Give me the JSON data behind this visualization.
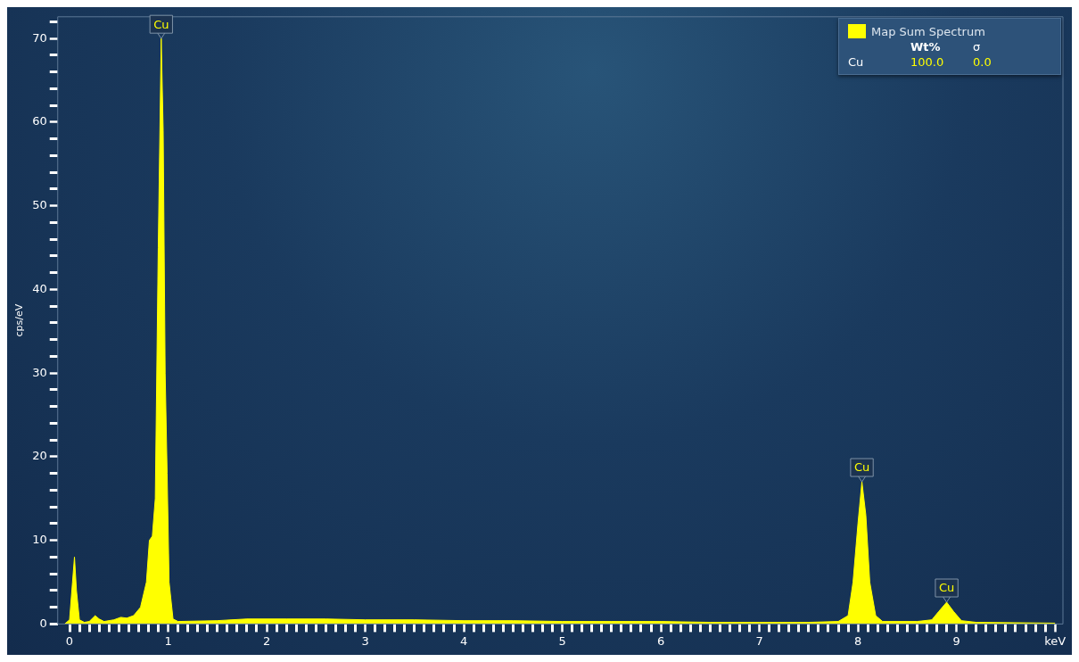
{
  "chart_data": {
    "type": "area",
    "ylabel": "cps/eV",
    "legend": "top right",
    "grid": false,
    "marker": "none",
    "xlim": [
      -0.12,
      10.08
    ],
    "ylim": [
      0,
      72.6
    ],
    "xticks": [
      0,
      {
        "value": 0.1,
        "label": null
      },
      {
        "value": 0.2,
        "label": null
      },
      {
        "value": 0.3,
        "label": null
      },
      {
        "value": 0.4,
        "label": null
      },
      {
        "value": 0.5,
        "label": null
      },
      {
        "value": 0.6,
        "label": null
      },
      {
        "value": 0.7,
        "label": null
      },
      {
        "value": 0.8,
        "label": null
      },
      {
        "value": 0.9,
        "label": null
      },
      1,
      {
        "value": 1.1,
        "label": null
      },
      {
        "value": 1.2,
        "label": null
      },
      {
        "value": 1.3,
        "label": null
      },
      {
        "value": 1.4,
        "label": null
      },
      {
        "value": 1.5,
        "label": null
      },
      {
        "value": 1.6,
        "label": null
      },
      {
        "value": 1.7,
        "label": null
      },
      {
        "value": 1.8,
        "label": null
      },
      {
        "value": 1.9,
        "label": null
      },
      2,
      {
        "value": 2.1,
        "label": null
      },
      {
        "value": 2.2,
        "label": null
      },
      {
        "value": 2.3,
        "label": null
      },
      {
        "value": 2.4,
        "label": null
      },
      {
        "value": 2.5,
        "label": null
      },
      {
        "value": 2.6,
        "label": null
      },
      {
        "value": 2.7,
        "label": null
      },
      {
        "value": 2.8,
        "label": null
      },
      {
        "value": 2.9,
        "label": null
      },
      3,
      {
        "value": 3.1,
        "label": null
      },
      {
        "value": 3.2,
        "label": null
      },
      {
        "value": 3.3,
        "label": null
      },
      {
        "value": 3.4,
        "label": null
      },
      {
        "value": 3.5,
        "label": null
      },
      {
        "value": 3.6,
        "label": null
      },
      {
        "value": 3.7,
        "label": null
      },
      {
        "value": 3.8,
        "label": null
      },
      {
        "value": 3.9,
        "label": null
      },
      4,
      {
        "value": 4.1,
        "label": null
      },
      {
        "value": 4.2,
        "label": null
      },
      {
        "value": 4.3,
        "label": null
      },
      {
        "value": 4.4,
        "label": null
      },
      {
        "value": 4.5,
        "label": null
      },
      {
        "value": 4.6,
        "label": null
      },
      {
        "value": 4.7,
        "label": null
      },
      {
        "value": 4.8,
        "label": null
      },
      {
        "value": 4.9,
        "label": null
      },
      5,
      {
        "value": 5.1,
        "label": null
      },
      {
        "value": 5.2,
        "label": null
      },
      {
        "value": 5.3,
        "label": null
      },
      {
        "value": 5.4,
        "label": null
      },
      {
        "value": 5.5,
        "label": null
      },
      {
        "value": 5.6,
        "label": null
      },
      {
        "value": 5.7,
        "label": null
      },
      {
        "value": 5.8,
        "label": null
      },
      {
        "value": 5.9,
        "label": null
      },
      6,
      {
        "value": 6.1,
        "label": null
      },
      {
        "value": 6.2,
        "label": null
      },
      {
        "value": 6.3,
        "label": null
      },
      {
        "value": 6.4,
        "label": null
      },
      {
        "value": 6.5,
        "label": null
      },
      {
        "value": 6.6,
        "label": null
      },
      {
        "value": 6.7,
        "label": null
      },
      {
        "value": 6.8,
        "label": null
      },
      {
        "value": 6.9,
        "label": null
      },
      7,
      {
        "value": 7.1,
        "label": null
      },
      {
        "value": 7.2,
        "label": null
      },
      {
        "value": 7.3,
        "label": null
      },
      {
        "value": 7.4,
        "label": null
      },
      {
        "value": 7.5,
        "label": null
      },
      {
        "value": 7.6,
        "label": null
      },
      {
        "value": 7.7,
        "label": null
      },
      {
        "value": 7.8,
        "label": null
      },
      {
        "value": 7.9,
        "label": null
      },
      8,
      {
        "value": 8.1,
        "label": null
      },
      {
        "value": 8.2,
        "label": null
      },
      {
        "value": 8.3,
        "label": null
      },
      {
        "value": 8.4,
        "label": null
      },
      {
        "value": 8.5,
        "label": null
      },
      {
        "value": 8.6,
        "label": null
      },
      {
        "value": 8.7,
        "label": null
      },
      {
        "value": 8.8,
        "label": null
      },
      {
        "value": 8.9,
        "label": null
      },
      9,
      {
        "value": 9.1,
        "label": null
      },
      {
        "value": 9.2,
        "label": null
      },
      {
        "value": 9.3,
        "label": null
      },
      {
        "value": 9.4,
        "label": null
      },
      {
        "value": 9.5,
        "label": null
      },
      {
        "value": 9.6,
        "label": null
      },
      {
        "value": 9.7,
        "label": null
      },
      {
        "value": 9.8,
        "label": null
      },
      {
        "value": 9.9,
        "label": null
      },
      {
        "value": 10,
        "label": "keV"
      }
    ],
    "yticks": [
      0,
      {
        "value": 2,
        "label": null
      },
      {
        "value": 4,
        "label": null
      },
      {
        "value": 6,
        "label": null
      },
      {
        "value": 8,
        "label": null
      },
      10,
      {
        "value": 12,
        "label": null
      },
      {
        "value": 14,
        "label": null
      },
      {
        "value": 16,
        "label": null
      },
      {
        "value": 18,
        "label": null
      },
      20,
      {
        "value": 22,
        "label": null
      },
      {
        "value": 24,
        "label": null
      },
      {
        "value": 26,
        "label": null
      },
      {
        "value": 28,
        "label": null
      },
      30,
      {
        "value": 32,
        "label": null
      },
      {
        "value": 34,
        "label": null
      },
      {
        "value": 36,
        "label": null
      },
      {
        "value": 38,
        "label": null
      },
      40,
      {
        "value": 42,
        "label": null
      },
      {
        "value": 44,
        "label": null
      },
      {
        "value": 46,
        "label": null
      },
      {
        "value": 48,
        "label": null
      },
      50,
      {
        "value": 52,
        "label": null
      },
      {
        "value": 54,
        "label": null
      },
      {
        "value": 56,
        "label": null
      },
      {
        "value": 58,
        "label": null
      },
      60,
      {
        "value": 62,
        "label": null
      },
      {
        "value": 64,
        "label": null
      },
      {
        "value": 66,
        "label": null
      },
      {
        "value": 68,
        "label": null
      },
      70,
      {
        "value": 72,
        "label": null
      }
    ],
    "annotations": [
      {
        "text": "Cu",
        "x": 0.93,
        "y": 70
      },
      {
        "text": "Cu",
        "x": 8.04,
        "y": 17
      },
      {
        "text": "Cu",
        "x": 8.9,
        "y": 2.6
      },
      "Wt%",
      "σ",
      "Cu",
      "100.0",
      "0.0"
    ],
    "series": [
      {
        "name": "Map Sum Spectrum",
        "color": "#ffff00",
        "x": [
          -0.05,
          0,
          0.03,
          0.05,
          0.07,
          0.1,
          0.15,
          0.2,
          0.26,
          0.3,
          0.35,
          0.45,
          0.52,
          0.58,
          0.65,
          0.72,
          0.78,
          0.81,
          0.84,
          0.87,
          0.9,
          0.93,
          0.95,
          0.97,
          0.99,
          1.01,
          1.05,
          1.1,
          1.5,
          1.8,
          2.2,
          2.6,
          3,
          3.5,
          4,
          4.5,
          5,
          5.5,
          6,
          6.5,
          7,
          7.5,
          7.8,
          7.9,
          7.95,
          8,
          8.04,
          8.08,
          8.12,
          8.18,
          8.25,
          8.6,
          8.75,
          8.82,
          8.9,
          8.97,
          9.05,
          9.2,
          10
        ],
        "values": [
          0,
          0.5,
          5,
          8,
          4,
          0.5,
          0.2,
          0.3,
          1,
          0.6,
          0.3,
          0.5,
          0.8,
          0.7,
          1,
          2,
          5,
          10,
          10.5,
          15,
          45,
          70,
          59,
          30,
          18,
          5,
          0.6,
          0.3,
          0.4,
          0.6,
          0.6,
          0.6,
          0.5,
          0.5,
          0.4,
          0.4,
          0.3,
          0.3,
          0.3,
          0.2,
          0.2,
          0.2,
          0.3,
          1,
          5,
          12,
          17,
          13,
          5,
          1,
          0.3,
          0.3,
          0.5,
          1.5,
          2.6,
          1.5,
          0.4,
          0.2,
          0.1
        ]
      }
    ]
  }
}
